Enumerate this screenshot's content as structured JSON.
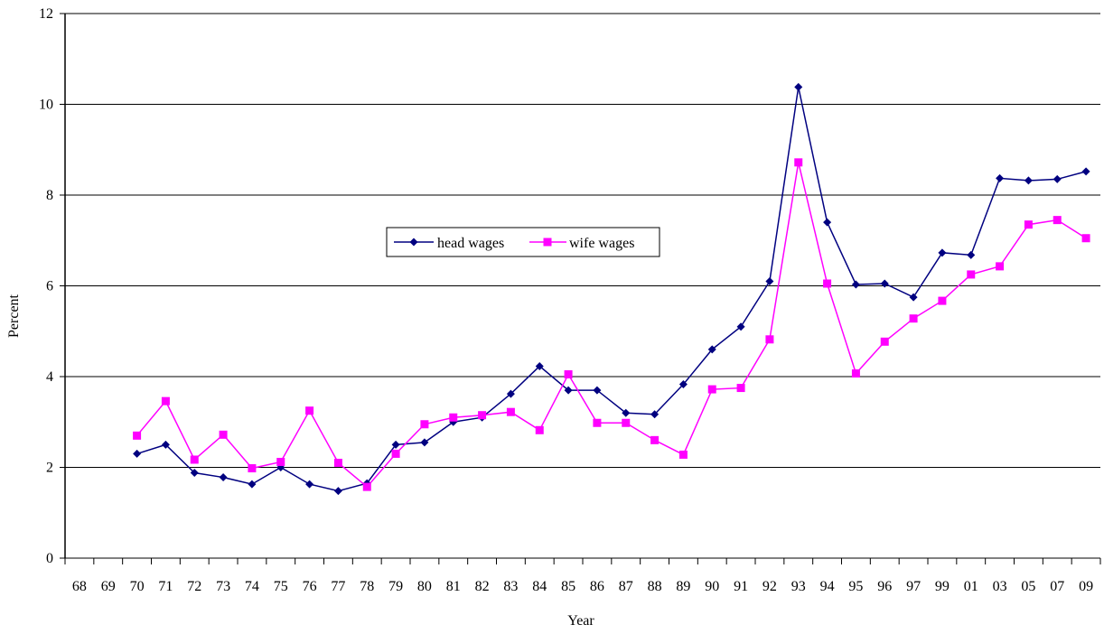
{
  "chart_data": {
    "type": "line",
    "xlabel": "Year",
    "ylabel": "Percent",
    "ylim": [
      0,
      12
    ],
    "yticks": [
      "0",
      "2",
      "4",
      "6",
      "8",
      "10",
      "12"
    ],
    "categories": [
      "68",
      "69",
      "70",
      "71",
      "72",
      "73",
      "74",
      "75",
      "76",
      "77",
      "78",
      "79",
      "80",
      "81",
      "82",
      "83",
      "84",
      "85",
      "86",
      "87",
      "88",
      "89",
      "90",
      "91",
      "92",
      "93",
      "94",
      "95",
      "96",
      "97",
      "99",
      "01",
      "03",
      "05",
      "07",
      "09"
    ],
    "grid": "horizontal",
    "legend_position": "center-left",
    "series": [
      {
        "name": "head wages",
        "color": "#000080",
        "marker": "diamond",
        "values": [
          null,
          null,
          2.3,
          2.5,
          1.88,
          1.78,
          1.63,
          2.0,
          1.63,
          1.48,
          1.65,
          2.5,
          2.55,
          3.0,
          3.1,
          3.62,
          4.23,
          3.7,
          3.7,
          3.2,
          3.17,
          3.83,
          4.6,
          5.1,
          6.1,
          10.38,
          7.4,
          6.03,
          6.05,
          5.75,
          6.73,
          6.68,
          8.37,
          8.32,
          8.35,
          8.52
        ]
      },
      {
        "name": "wife wages",
        "color": "#ff00ff",
        "marker": "square",
        "values": [
          null,
          null,
          2.7,
          3.46,
          2.17,
          2.72,
          1.98,
          2.12,
          3.25,
          2.1,
          1.57,
          2.3,
          2.95,
          3.1,
          3.15,
          3.22,
          2.82,
          4.05,
          2.98,
          2.98,
          2.6,
          2.28,
          3.72,
          3.75,
          4.82,
          8.72,
          6.05,
          4.07,
          4.77,
          5.28,
          5.67,
          6.25,
          6.43,
          7.35,
          7.45,
          7.05
        ]
      }
    ]
  }
}
